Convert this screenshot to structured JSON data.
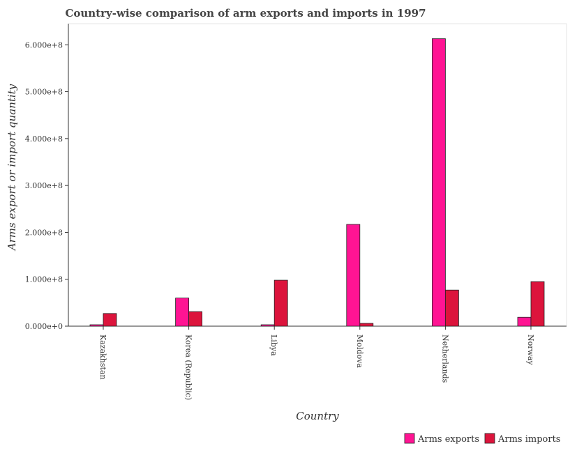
{
  "chart_data": {
    "type": "bar",
    "title": "Country-wise comparison of arm exports and imports in 1997",
    "xlabel": "Country",
    "ylabel": "Arms export or import quantity",
    "categories": [
      "Kazakhstan",
      "Korea (Republic)",
      "Libya",
      "Moldova",
      "Netherlands",
      "Norway"
    ],
    "series": [
      {
        "name": "Arms exports",
        "color": "#ff1493",
        "values": [
          3000000,
          60000000,
          3000000,
          217000000,
          613000000,
          19000000
        ]
      },
      {
        "name": "Arms imports",
        "color": "#dc143c",
        "values": [
          27000000,
          31000000,
          98000000,
          6000000,
          77000000,
          95000000
        ]
      }
    ],
    "ylim": [
      0,
      645000000
    ],
    "yticks": [
      0,
      100000000,
      200000000,
      300000000,
      400000000,
      500000000,
      600000000
    ],
    "ytick_labels": [
      "0.000e+0",
      "1.000e+8",
      "2.000e+8",
      "3.000e+8",
      "4.000e+8",
      "5.000e+8",
      "6.000e+8"
    ],
    "grid": false,
    "legend_position": "bottom-right"
  }
}
